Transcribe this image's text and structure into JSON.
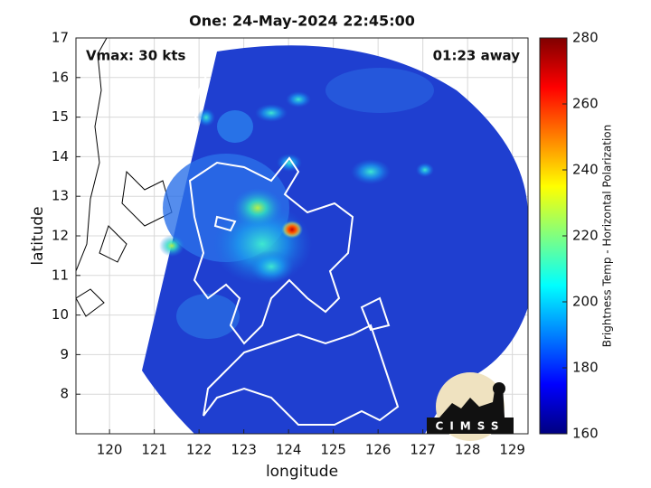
{
  "chart_data": {
    "type": "map",
    "title": "One: 24-May-2024 22:45:00",
    "annotations": [
      "Vmax: 30 kts",
      "01:23 away"
    ],
    "x_label": "longitude",
    "y_label": "latitude",
    "xlim": [
      119.25,
      129.35
    ],
    "xticks": [
      120,
      121,
      122,
      123,
      124,
      125,
      126,
      127,
      128,
      129
    ],
    "ylim": [
      7,
      17
    ],
    "yticks": [
      8,
      9,
      10,
      11,
      12,
      13,
      14,
      15,
      16,
      17
    ],
    "grid": true,
    "colorbar": {
      "label": "Brightness Temp - Horizontal Polarization",
      "lim": [
        160,
        280
      ],
      "ticks": [
        160,
        180,
        200,
        220,
        240,
        260,
        280
      ],
      "colormap": "jet"
    },
    "logo_text": "CIMSS"
  }
}
